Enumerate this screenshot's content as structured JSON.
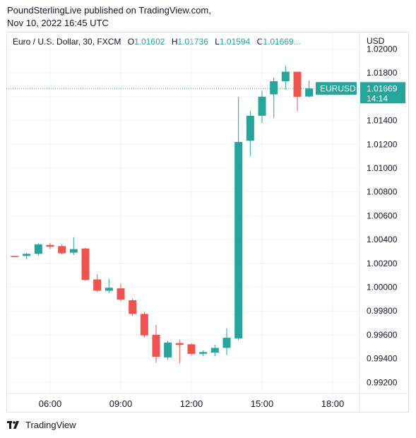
{
  "publisher": {
    "line1": "PoundSterlingLive published on TradingView.com,",
    "line2": "Nov 10, 2022 16:45 UTC"
  },
  "legend": {
    "title": "Euro / U.S. Dollar, 30, FXCM",
    "o_label": "O",
    "o_value": "1.01602",
    "h_label": "H",
    "h_value": "1.01736",
    "l_label": "L",
    "l_value": "1.01594",
    "c_label": "C",
    "c_value": "1.01669..."
  },
  "footer": {
    "brand": "TradingView"
  },
  "colors": {
    "up": "#26a69a",
    "down": "#ef5350",
    "grid": "#f0f3fa",
    "axis_text": "#131722"
  },
  "chart_data": {
    "type": "candlestick",
    "symbol": "EURUSD",
    "currency_label": "USD",
    "last_price": "1.01669",
    "countdown": "14:14",
    "y_range": [
      0.9915,
      1.0205
    ],
    "y_ticks": [
      "1.02000",
      "1.01800",
      "1.01600",
      "1.01400",
      "1.01200",
      "1.01000",
      "1.00800",
      "1.00600",
      "1.00400",
      "1.00200",
      "1.00000",
      "0.99800",
      "0.99600",
      "0.99400",
      "0.99200"
    ],
    "x_ticks": [
      "06:00",
      "09:00",
      "12:00",
      "15:00",
      "18:00"
    ],
    "candles": [
      {
        "t": "04:30",
        "o": 1.00262,
        "h": 1.00265,
        "l": 1.00255,
        "c": 1.00259
      },
      {
        "t": "05:00",
        "o": 1.00262,
        "h": 1.0029,
        "l": 1.00235,
        "c": 1.0028
      },
      {
        "t": "05:30",
        "o": 1.0028,
        "h": 1.0037,
        "l": 1.00265,
        "c": 1.0036
      },
      {
        "t": "06:00",
        "o": 1.00355,
        "h": 1.0037,
        "l": 1.0032,
        "c": 1.0034
      },
      {
        "t": "06:30",
        "o": 1.00345,
        "h": 1.0036,
        "l": 1.00275,
        "c": 1.00285
      },
      {
        "t": "07:00",
        "o": 1.0029,
        "h": 1.0042,
        "l": 1.0027,
        "c": 1.0032
      },
      {
        "t": "07:30",
        "o": 1.00325,
        "h": 1.0033,
        "l": 1.00055,
        "c": 1.0006
      },
      {
        "t": "08:00",
        "o": 1.00065,
        "h": 1.0011,
        "l": 0.9996,
        "c": 0.9997
      },
      {
        "t": "08:30",
        "o": 0.9997,
        "h": 1.0007,
        "l": 0.9995,
        "c": 0.99995
      },
      {
        "t": "09:00",
        "o": 0.9999,
        "h": 1.0003,
        "l": 0.9988,
        "c": 0.99895
      },
      {
        "t": "09:30",
        "o": 0.9989,
        "h": 0.99905,
        "l": 0.9976,
        "c": 0.99775
      },
      {
        "t": "10:00",
        "o": 0.99775,
        "h": 0.9979,
        "l": 0.9958,
        "c": 0.99595
      },
      {
        "t": "10:30",
        "o": 0.996,
        "h": 0.99685,
        "l": 0.99365,
        "c": 0.99415
      },
      {
        "t": "11:00",
        "o": 0.9941,
        "h": 0.9955,
        "l": 0.9939,
        "c": 0.99535
      },
      {
        "t": "11:30",
        "o": 0.9953,
        "h": 0.9956,
        "l": 0.9936,
        "c": 0.99515
      },
      {
        "t": "12:00",
        "o": 0.9952,
        "h": 0.9953,
        "l": 0.99425,
        "c": 0.9944
      },
      {
        "t": "12:30",
        "o": 0.9944,
        "h": 0.9947,
        "l": 0.9942,
        "c": 0.99455
      },
      {
        "t": "13:00",
        "o": 0.9945,
        "h": 0.99515,
        "l": 0.9942,
        "c": 0.9949
      },
      {
        "t": "13:30",
        "o": 0.9949,
        "h": 0.99655,
        "l": 0.9943,
        "c": 0.99575
      },
      {
        "t": "14:00",
        "o": 0.9957,
        "h": 1.016,
        "l": 0.99555,
        "c": 1.0122
      },
      {
        "t": "14:30",
        "o": 1.0123,
        "h": 1.0148,
        "l": 1.011,
        "c": 1.0144
      },
      {
        "t": "15:00",
        "o": 1.0144,
        "h": 1.0165,
        "l": 1.0138,
        "c": 1.016
      },
      {
        "t": "15:30",
        "o": 1.0162,
        "h": 1.0176,
        "l": 1.0142,
        "c": 1.0173
      },
      {
        "t": "16:00",
        "o": 1.0173,
        "h": 1.0186,
        "l": 1.0166,
        "c": 1.0181
      },
      {
        "t": "16:30",
        "o": 1.0181,
        "h": 1.0181,
        "l": 1.0148,
        "c": 1.016
      },
      {
        "t": "17:00",
        "o": 1.01602,
        "h": 1.01736,
        "l": 1.01594,
        "c": 1.01669
      }
    ]
  }
}
